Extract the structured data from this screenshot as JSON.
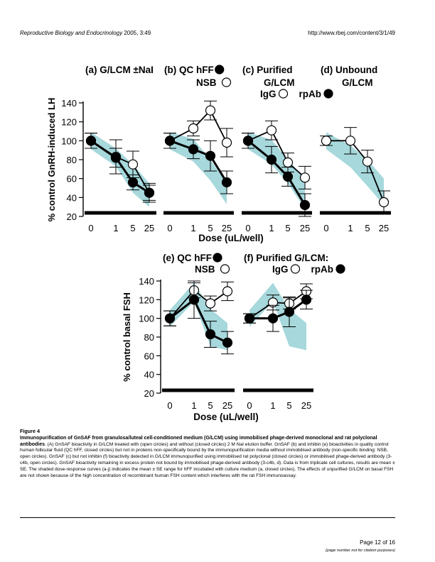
{
  "header": {
    "journal": "Reproductive Biology and Endocrinology",
    "year_vol": "2005, 3:49",
    "url": "http://www.rbej.com/content/3/1/49"
  },
  "colors": {
    "band": "#a6d8dc",
    "filled": "#000000",
    "open": "#ffffff"
  },
  "chart_data": [
    {
      "type": "line",
      "ylabel": "% control GnRH-induced LH",
      "xlabel": "Dose (uL/well)",
      "ylim": [
        20,
        140
      ],
      "yticks": [
        20,
        40,
        60,
        80,
        100,
        120,
        140
      ],
      "categories": [
        "0",
        "1",
        "5",
        "25"
      ],
      "panels": [
        {
          "title": "(a)  G/LCM ±NaI",
          "series": [
            {
              "marker": "open",
              "values": [
                100,
                83,
                75,
                45
              ],
              "err": [
                8,
                18,
                14,
                8
              ]
            },
            {
              "marker": "filled",
              "values": [
                100,
                82,
                56,
                45
              ],
              "err": [
                8,
                10,
                8,
                10
              ]
            }
          ],
          "band": {
            "upper": [
              109,
              92,
              75,
              55
            ],
            "lower": [
              91,
              73,
              45,
              30
            ]
          }
        },
        {
          "title": "(b) QC hFF",
          "title_marker": "filled",
          "subtitle": "NSB",
          "subtitle_marker": "open",
          "series": [
            {
              "marker": "open",
              "values": [
                100,
                113,
                132,
                98
              ],
              "err": [
                8,
                8,
                10,
                15
              ]
            },
            {
              "marker": "filled",
              "values": [
                100,
                91,
                84,
                56
              ],
              "err": [
                8,
                10,
                16,
                12
              ]
            }
          ],
          "band": {
            "upper": [
              109,
              102,
              80,
              55
            ],
            "lower": [
              91,
              78,
              58,
              33
            ]
          }
        },
        {
          "title": "(c)  Purified",
          "subtitle": "G/LCM",
          "legend": [
            {
              "label": "IgG",
              "marker": "open"
            },
            {
              "label": "rpAb",
              "marker": "filled"
            }
          ],
          "series": [
            {
              "marker": "open",
              "values": [
                100,
                111,
                77,
                61
              ],
              "err": [
                8,
                10,
                10,
                12
              ]
            },
            {
              "marker": "filled",
              "values": [
                100,
                80,
                62,
                32
              ],
              "err": [
                8,
                14,
                10,
                12
              ]
            }
          ],
          "band": {
            "upper": [
              109,
              101,
              80,
              60
            ],
            "lower": [
              91,
              75,
              55,
              28
            ]
          }
        },
        {
          "title": "(d)  Unbound",
          "subtitle": "G/LCM",
          "series": [
            {
              "marker": "open",
              "values": [
                100,
                100,
                78,
                35
              ],
              "err": [
                5,
                14,
                12,
                12
              ]
            }
          ],
          "band": {
            "upper": [
              109,
              95,
              80,
              60
            ],
            "lower": [
              91,
              72,
              52,
              32
            ]
          }
        }
      ]
    },
    {
      "type": "line",
      "ylabel": "% control basal FSH",
      "xlabel": "Dose (uL/well)",
      "ylim": [
        20,
        140
      ],
      "yticks": [
        20,
        40,
        60,
        80,
        100,
        120,
        140
      ],
      "categories": [
        "0",
        "1",
        "5",
        "25"
      ],
      "panels": [
        {
          "title": "(e) QC hFF",
          "title_marker": "filled",
          "subtitle": "NSB",
          "subtitle_marker": "open",
          "series": [
            {
              "marker": "open",
              "values": [
                100,
                130,
                116,
                129
              ],
              "err": [
                8,
                8,
                8,
                10
              ]
            },
            {
              "marker": "filled",
              "values": [
                100,
                120,
                83,
                74
              ],
              "err": [
                8,
                20,
                14,
                12
              ]
            }
          ],
          "band": {
            "upper": [
              109,
              138,
              110,
              95
            ],
            "lower": [
              91,
              118,
              70,
              66
            ]
          }
        },
        {
          "title": "(f)  Purified G/LCM:",
          "legend": [
            {
              "label": "IgG",
              "marker": "open"
            },
            {
              "label": "rpAb",
              "marker": "filled"
            }
          ],
          "series": [
            {
              "marker": "open",
              "values": [
                100,
                117,
                116,
                129
              ],
              "err": [
                5,
                8,
                6,
                8
              ]
            },
            {
              "marker": "filled",
              "values": [
                100,
                100,
                107,
                120
              ],
              "err": [
                5,
                14,
                16,
                10
              ]
            }
          ],
          "band": {
            "upper": [
              109,
              138,
              110,
              95
            ],
            "lower": [
              91,
              118,
              70,
              66
            ]
          }
        }
      ]
    }
  ],
  "caption": {
    "label": "Figure 4",
    "title": "Immunopurification of GnSAF from granulosa/luteal cell-conditioned medium (G/LCM) using immobilised phage-derived monoclonal and rat polyclonal antibodies",
    "body": ". (A) GnSAF bioactivity in G/LCM treated with (open circles) and without (closed circles) 2 M NaI elution buffer. GnSAF (b) and inhibin (e) bioactivities in quality control human follicular fluid (QC hFF, closed circles) but not in proteins non-specifically bound by the immunopurification media without immobilised antibody (non-specific binding: NSB, open circles). GnSAF (c) but not inhibin (f) bioactivity detected in G/LCM immunopurified using immobilised rat polyclonal (closed circles) or immobilised phage-derived antibody (3-c4b, open circles). GnSAF bioactivity remaining in excess protein not bound by immobilised phage-derived antibody (3-c4b, d). Data is from triplicate cell cultures, results are mean ± SE. The shaded dose-response curves (a-j) indicates the mean ± SE range for hFF incubated with culture medium (a, closed circles). The effects of unpurified G/LCM on basal FSH are not shown because of the high concentration of recombinant human FSH content which interferes with the rat FSH immunoassay."
  },
  "footer": {
    "page": "Page 12 of 16",
    "note": "(page number not for citation purposes)"
  }
}
